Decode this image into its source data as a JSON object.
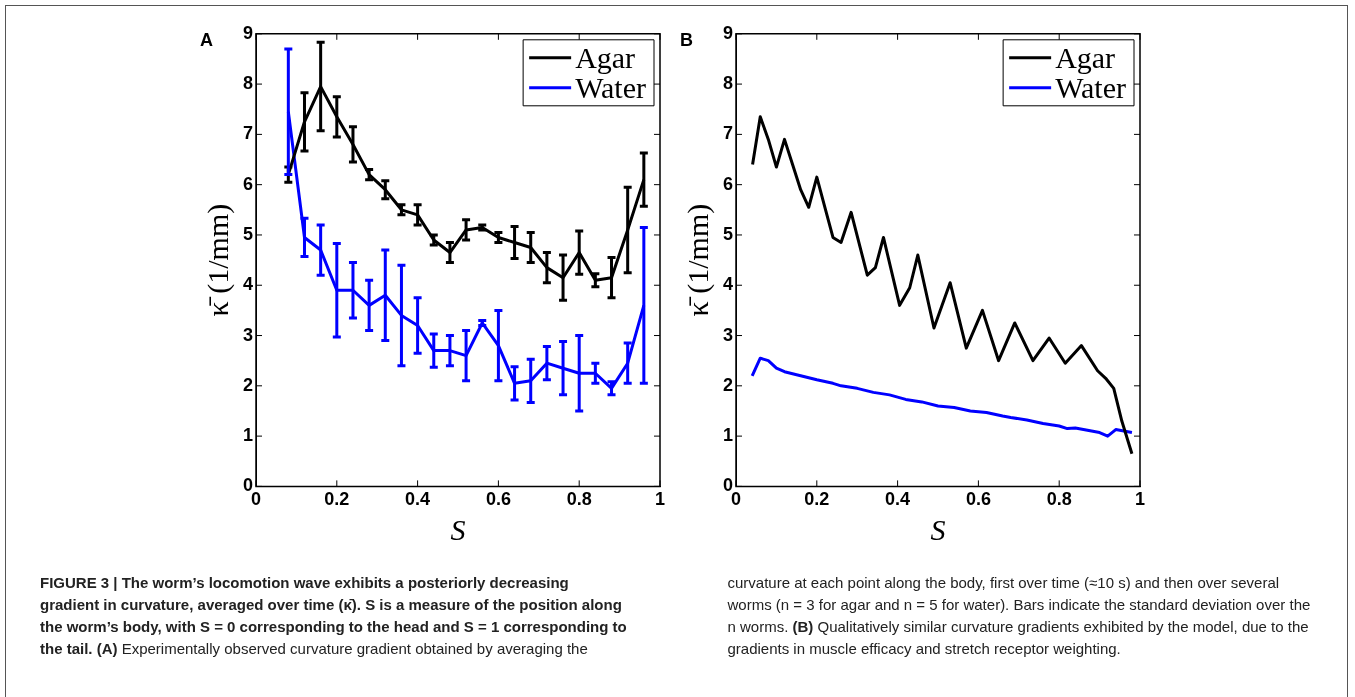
{
  "chart_data": [
    {
      "type": "line",
      "title": "A",
      "xlabel": "S",
      "ylabel": "κ̄ (1/mm)",
      "xlim": [
        0,
        1
      ],
      "xticks": [
        0,
        0.2,
        0.4,
        0.6,
        0.8,
        1
      ],
      "ylim": [
        0,
        9
      ],
      "yticks": [
        0,
        1,
        2,
        3,
        4,
        5,
        6,
        7,
        8,
        9
      ],
      "grid": false,
      "legend": "top right",
      "marker": "none",
      "line_style": "solid",
      "x": [
        0.08,
        0.12,
        0.16,
        0.2,
        0.24,
        0.28,
        0.32,
        0.36,
        0.4,
        0.44,
        0.48,
        0.52,
        0.56,
        0.6,
        0.64,
        0.68,
        0.72,
        0.76,
        0.8,
        0.84,
        0.88,
        0.92,
        0.96
      ],
      "series": [
        {
          "name": "Agar",
          "color": "#000000",
          "values": [
            6.2,
            7.25,
            7.95,
            7.35,
            6.8,
            6.2,
            5.9,
            5.5,
            5.4,
            4.9,
            4.65,
            5.1,
            5.15,
            4.95,
            4.85,
            4.75,
            4.35,
            4.15,
            4.65,
            4.1,
            4.15,
            5.1,
            6.1
          ],
          "errors": [
            0.15,
            0.58,
            0.88,
            0.4,
            0.35,
            0.1,
            0.18,
            0.1,
            0.2,
            0.1,
            0.2,
            0.2,
            0.05,
            0.1,
            0.32,
            0.3,
            0.3,
            0.45,
            0.43,
            0.13,
            0.4,
            0.85,
            0.53
          ]
        },
        {
          "name": "Water",
          "color": "#0000ff",
          "values": [
            7.45,
            4.95,
            4.7,
            3.9,
            3.9,
            3.6,
            3.8,
            3.4,
            3.2,
            2.7,
            2.7,
            2.6,
            3.25,
            2.8,
            2.05,
            2.1,
            2.45,
            2.35,
            2.25,
            2.25,
            1.95,
            2.45,
            3.6
          ],
          "errors": [
            1.25,
            0.38,
            0.5,
            0.93,
            0.55,
            0.5,
            0.9,
            1.0,
            0.55,
            0.33,
            0.3,
            0.5,
            0.05,
            0.7,
            0.33,
            0.43,
            0.33,
            0.53,
            0.75,
            0.2,
            0.13,
            0.4,
            1.55
          ]
        }
      ],
      "annotations": [
        "FIGURE 3 | The worm’s locomotion wave exhibits a posteriorly decreasing gradient in curvature, averaged over time (κ̄). S is a measure of the position along the worm’s body, with S = 0 corresponding to the head and S = 1 corresponding to the tail. (A)",
        " Experimentally observed curvature gradient obtained by averaging the curvature at each point along the body, first over time (≈10 s) and then over several worms (n = 3 for agar and n = 5 for water). Bars indicate the standard deviation over the n worms. ",
        "(B)",
        " Qualitatively similar curvature gradients exhibited by the model, due to the gradients in muscle efficacy and stretch receptor weighting."
      ]
    },
    {
      "type": "line",
      "title": "B",
      "xlabel": "S",
      "ylabel": "κ̄ (1/mm)",
      "xlim": [
        0,
        1
      ],
      "xticks": [
        0,
        0.2,
        0.4,
        0.6,
        0.8,
        1
      ],
      "ylim": [
        0,
        9
      ],
      "yticks": [
        0,
        1,
        2,
        3,
        4,
        5,
        6,
        7,
        8,
        9
      ],
      "grid": false,
      "legend": "top right",
      "marker": "none",
      "line_style": "solid",
      "series": [
        {
          "name": "Agar",
          "color": "#000000",
          "x": [
            0.041,
            0.06,
            0.08,
            0.1,
            0.12,
            0.14,
            0.16,
            0.18,
            0.2,
            0.22,
            0.24,
            0.26,
            0.285,
            0.325,
            0.345,
            0.365,
            0.405,
            0.43,
            0.45,
            0.49,
            0.53,
            0.57,
            0.61,
            0.65,
            0.69,
            0.735,
            0.775,
            0.815,
            0.855,
            0.895,
            0.915,
            0.935,
            0.955,
            0.98
          ],
          "values": [
            6.4,
            7.35,
            6.9,
            6.35,
            6.9,
            6.4,
            5.9,
            5.55,
            6.15,
            5.55,
            4.95,
            4.85,
            5.45,
            4.2,
            4.35,
            4.95,
            3.6,
            3.95,
            4.6,
            3.15,
            4.05,
            2.75,
            3.5,
            2.5,
            3.25,
            2.5,
            2.95,
            2.45,
            2.8,
            2.3,
            2.15,
            1.95,
            1.3,
            0.65
          ]
        },
        {
          "name": "Water",
          "color": "#0000ff",
          "x": [
            0.04,
            0.06,
            0.08,
            0.1,
            0.12,
            0.16,
            0.2,
            0.24,
            0.26,
            0.3,
            0.34,
            0.38,
            0.42,
            0.46,
            0.5,
            0.54,
            0.58,
            0.62,
            0.66,
            0.68,
            0.72,
            0.76,
            0.8,
            0.82,
            0.84,
            0.88,
            0.9,
            0.92,
            0.94,
            0.98
          ],
          "values": [
            2.2,
            2.55,
            2.5,
            2.35,
            2.28,
            2.2,
            2.12,
            2.05,
            2.0,
            1.95,
            1.87,
            1.82,
            1.73,
            1.68,
            1.6,
            1.57,
            1.5,
            1.47,
            1.4,
            1.37,
            1.32,
            1.25,
            1.2,
            1.15,
            1.16,
            1.1,
            1.07,
            1.0,
            1.13,
            1.07
          ]
        }
      ]
    }
  ]
}
